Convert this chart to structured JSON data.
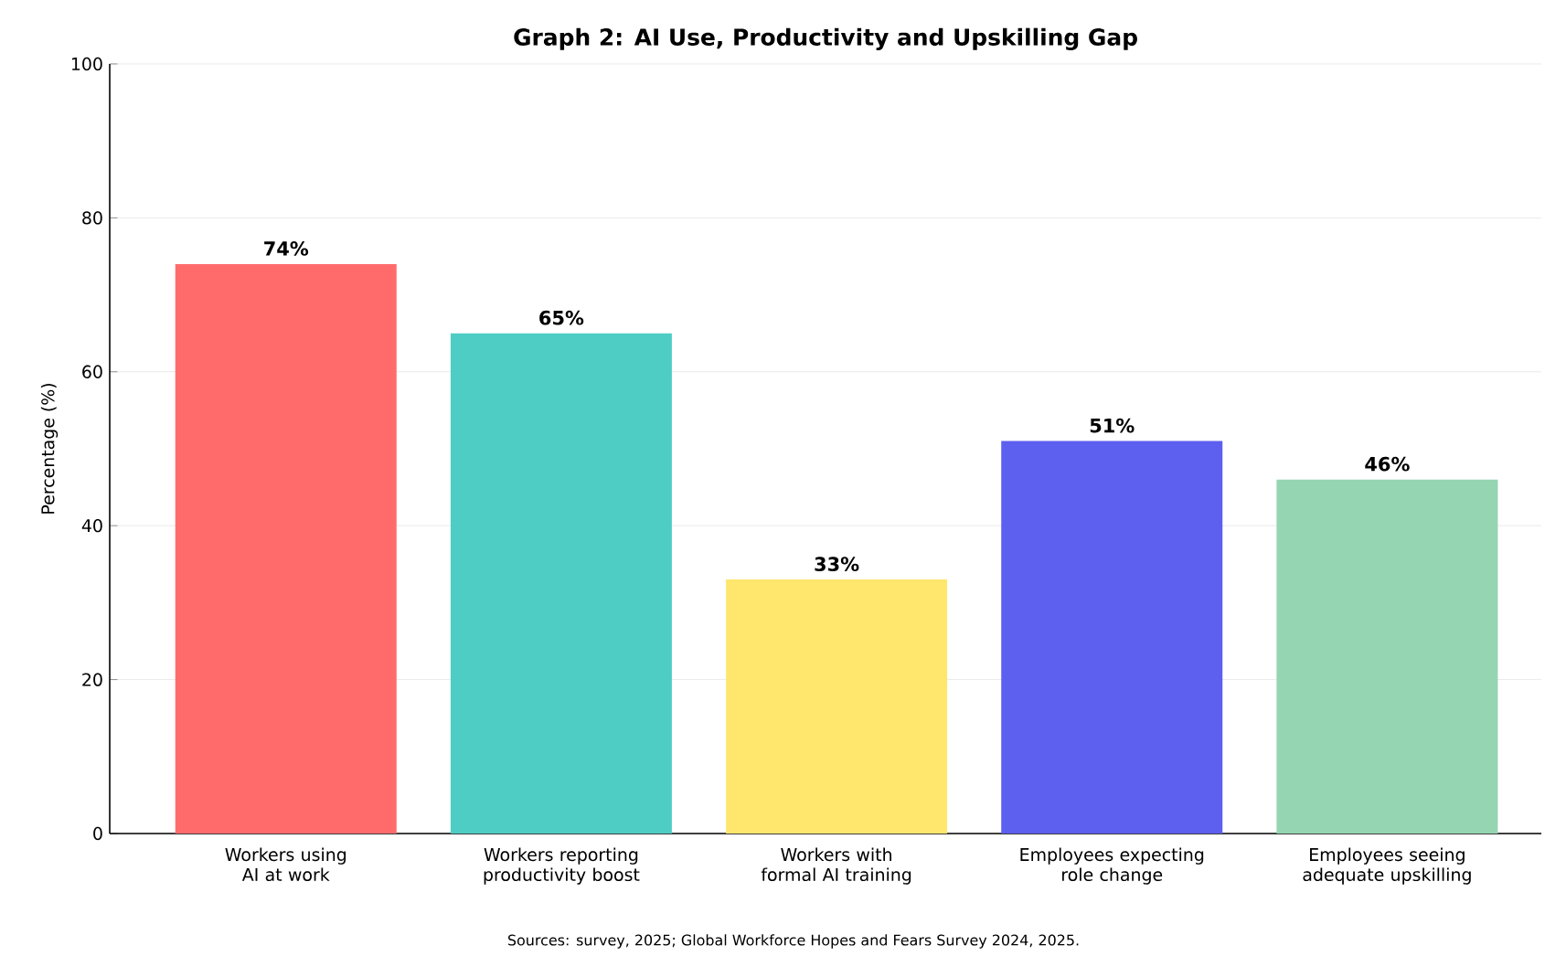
{
  "chart_data": {
    "type": "bar",
    "title": "Graph 2: AI Use, Productivity and Upskilling Gap",
    "categories": [
      "Workers using AI at work",
      "Workers reporting productivity boost",
      "Workers with formal AI training",
      "Employees expecting role change",
      "Employees seeing adequate upskilling"
    ],
    "values": [
      74,
      65,
      33,
      51,
      46
    ],
    "colors": [
      "#ff6b6b",
      "#4ecdc4",
      "#ffe66d",
      "#5d5fef",
      "#95d5b2"
    ],
    "value_labels": [
      "74%",
      "65%",
      "33%",
      "51%",
      "46%"
    ],
    "ylabel": "Percentage (%)",
    "ylim": [
      0,
      100
    ],
    "yticks": [
      0,
      20,
      40,
      60,
      80,
      100
    ],
    "grid": "y",
    "annotations": [
      "Sources: survey, 2025; Global Workforce Hopes and Fears Survey 2024, 2025."
    ]
  }
}
